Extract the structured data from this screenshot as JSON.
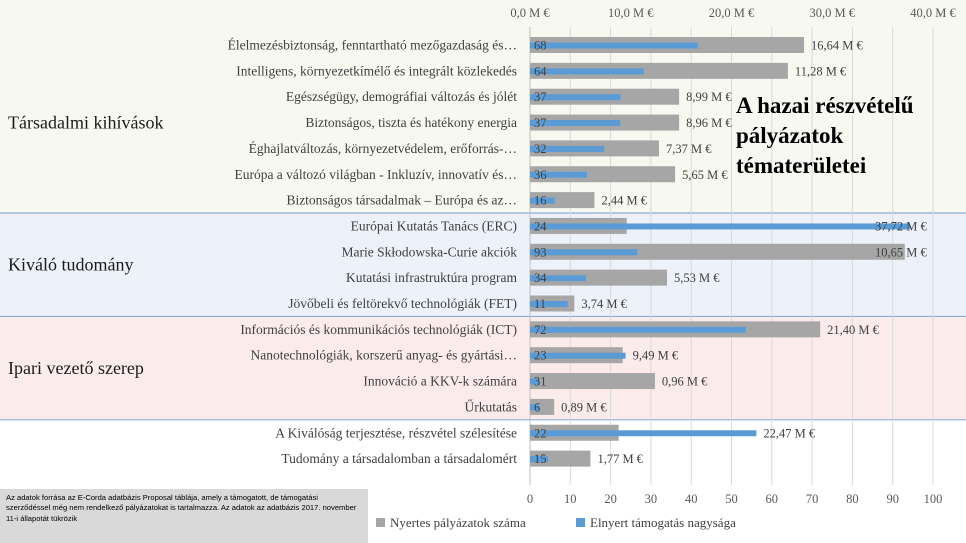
{
  "chart_data": {
    "type": "bar",
    "title": "A hazai részvételű pályázatok tématerületei",
    "title_lines": [
      "A hazai részvételű",
      "pályázatok",
      "tématerületei"
    ],
    "top_axis": {
      "ticks": [
        "0,0 M €",
        "10,0 M €",
        "20,0 M €",
        "30,0 M €",
        "40,0 M €"
      ],
      "range": [
        0,
        40
      ]
    },
    "bottom_axis": {
      "ticks": [
        "0",
        "10",
        "20",
        "30",
        "40",
        "50",
        "60",
        "70",
        "80",
        "90",
        "100"
      ],
      "range": [
        0,
        100
      ]
    },
    "legend": [
      {
        "name": "Nyertes pályázatok száma",
        "color": "#a6a6a6"
      },
      {
        "name": "Elnyert támogatás nagysága",
        "color": "#5b9bd5"
      }
    ],
    "series": [
      {
        "name": "Nyertes pályázatok száma",
        "axis": "bottom",
        "values": [
          68,
          64,
          37,
          37,
          32,
          36,
          16,
          24,
          93,
          34,
          11,
          72,
          23,
          31,
          6,
          22,
          15
        ]
      },
      {
        "name": "Elnyert támogatás nagysága",
        "axis": "top",
        "unit": "M €",
        "values": [
          16.64,
          11.28,
          8.99,
          8.96,
          7.37,
          5.65,
          2.44,
          37.72,
          10.65,
          5.53,
          3.74,
          21.4,
          9.49,
          0.96,
          0.89,
          22.47,
          1.77
        ]
      }
    ],
    "count_labels": [
      "68",
      "64",
      "37",
      "37",
      "32",
      "36",
      "16",
      "24",
      "93",
      "34",
      "11",
      "72",
      "23",
      "31",
      "6",
      "22",
      "15"
    ],
    "value_labels": [
      "16,64 M €",
      "11,28 M €",
      "8,99 M €",
      "8,96 M €",
      "7,37 M €",
      "5,65 M €",
      "2,44 M €",
      "37,72 M €",
      "10,65 M €",
      "5,53 M €",
      "3,74 M €",
      "21,40 M €",
      "9,49 M €",
      "0,96 M €",
      "0,89 M €",
      "22,47 M €",
      "1,77 M €"
    ],
    "categories": [
      "Élelmezésbiztonság, fenntartható mezőgazdaság és…",
      "Intelligens, környezetkímélő és integrált közlekedés",
      "Egészségügy, demográfiai változás és jólét",
      "Biztonságos, tiszta és hatékony energia",
      "Éghajlatváltozás, környezetvédelem, erőforrás-…",
      "Európa a változó világban - Inkluzív, innovatív és…",
      "Biztonságos társadalmak – Európa és az…",
      "Európai Kutatás Tanács (ERC)",
      "Marie Skłodowska-Curie akciók",
      "Kutatási infrastruktúra program",
      "Jövőbeli és feltörekvő technológiák (FET)",
      "Információs és kommunikációs technológiák (ICT)",
      "Nanotechnológiák, korszerű anyag- és gyártási…",
      "Innováció a KKV-k számára",
      "Űrkutatás",
      "A Kiválóság terjesztése, részvétel szélesítése",
      "Tudomány a társadalomban a társadalomért"
    ],
    "groups": [
      {
        "name": "Társadalmi kihívások",
        "color": "#f7f9f1",
        "start": 0,
        "end": 6
      },
      {
        "name": "Kiváló tudomány",
        "color": "#edf1fa",
        "start": 7,
        "end": 10
      },
      {
        "name": "Ipari vezető szerep",
        "color": "#fbeceb",
        "start": 11,
        "end": 14
      },
      {
        "name": "",
        "color": "#ffffff",
        "start": 15,
        "end": 16
      }
    ]
  },
  "source_note": "Az adatok forrása az E-Corda adatbázis Proposal táblája, amely a támogatott, de támogatási szerződéssel még nem rendelkező pályázatokat is tartalmazza. Az adatok az adatbázis 2017. november 11-i állapotát tükrözik"
}
